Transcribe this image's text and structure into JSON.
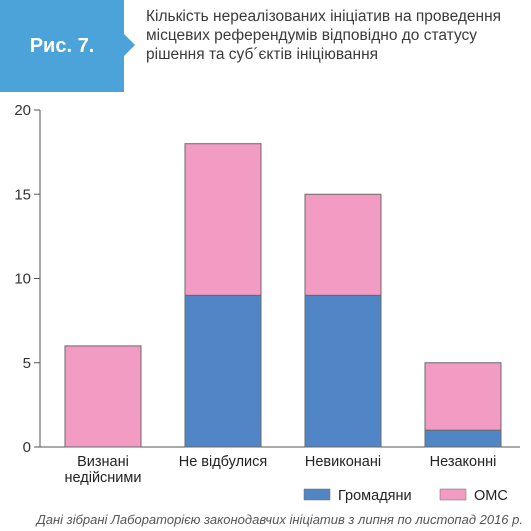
{
  "figure": {
    "label": "Рис. 7.",
    "title": "Кількість нереалізованих ініціатив на проведення місцевих референдумів відповідно до статусу рішення та суб´єктів ініціювання",
    "footnote": "Дані зібрані Лабораторією законодавчих ініціатив з липня по листопад 2016 р."
  },
  "colors": {
    "badge": "#4ba3d9",
    "series_1": "#5186c6",
    "series_2": "#f29bc3"
  },
  "chart_data": {
    "type": "bar",
    "stacked": true,
    "categories": [
      "Визнані недійсними",
      "Не відбулися",
      "Невиконані",
      "Незаконні"
    ],
    "series": [
      {
        "name": "Громадяни",
        "values": [
          0,
          9,
          9,
          1
        ]
      },
      {
        "name": "ОМС",
        "values": [
          6,
          9,
          6,
          4
        ]
      }
    ],
    "ylim": [
      0,
      20
    ],
    "yticks": [
      "0",
      "5",
      "10",
      "15",
      "20"
    ],
    "grid": false,
    "legend": "bottom-right"
  }
}
